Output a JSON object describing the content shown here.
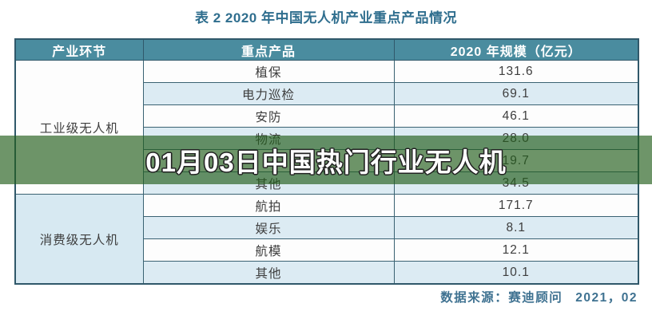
{
  "title": "表 2 2020 年中国无人机产业重点产品情况",
  "watermark": {
    "text": "01月03日中国热门行业无人机",
    "overlay_color": "rgba(35,94,28,0.66)"
  },
  "footer": {
    "source_label": "数据来源：赛迪顾问",
    "date": "2021，02"
  },
  "colors": {
    "header_bg": "#4a8c9f",
    "header_text": "#ffffff",
    "border": "#3a6272",
    "row_white": "#fdfdfd",
    "row_alt_blue": "#dcebf3",
    "consumer_category_bg": "#d7e9f2",
    "title_text": "#2f6e8e",
    "footer_text": "#3f7291",
    "cell_text": "#3d3d3d"
  },
  "table": {
    "headers": [
      "产业环节",
      "重点产品",
      "2020 年规模（亿元）"
    ],
    "sections": [
      {
        "category": "工业级无人机",
        "rows": [
          {
            "product": "植保",
            "value": "131.6"
          },
          {
            "product": "电力巡检",
            "value": "69.1"
          },
          {
            "product": "安防",
            "value": "46.1"
          },
          {
            "product": "物流",
            "value": "28.0"
          },
          {
            "product": "",
            "value": "19.7"
          },
          {
            "product": "其他",
            "value": "34.5"
          }
        ]
      },
      {
        "category": "消费级无人机",
        "rows": [
          {
            "product": "航拍",
            "value": "171.7"
          },
          {
            "product": "娱乐",
            "value": "8.1"
          },
          {
            "product": "航模",
            "value": "12.1"
          },
          {
            "product": "其他",
            "value": "10.1"
          }
        ]
      }
    ]
  },
  "chart_data": {
    "type": "table",
    "title": "表 2 2020 年中国无人机产业重点产品情况",
    "columns": [
      "产业环节",
      "重点产品",
      "2020 年规模（亿元）"
    ],
    "rows": [
      [
        "工业级无人机",
        "植保",
        131.6
      ],
      [
        "工业级无人机",
        "电力巡检",
        69.1
      ],
      [
        "工业级无人机",
        "安防",
        46.1
      ],
      [
        "工业级无人机",
        "物流",
        28.0
      ],
      [
        "工业级无人机",
        "",
        19.7
      ],
      [
        "工业级无人机",
        "其他",
        34.5
      ],
      [
        "消费级无人机",
        "航拍",
        171.7
      ],
      [
        "消费级无人机",
        "娱乐",
        8.1
      ],
      [
        "消费级无人机",
        "航模",
        12.1
      ],
      [
        "消费级无人机",
        "其他",
        10.1
      ]
    ],
    "source": "数据来源：赛迪顾问 2021，02"
  }
}
